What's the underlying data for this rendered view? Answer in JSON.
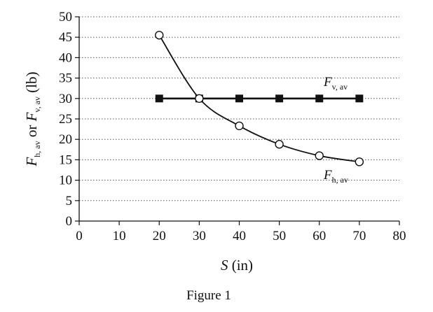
{
  "chart_data": {
    "type": "line",
    "xlabel": {
      "var": "S",
      "unit": " (in)"
    },
    "ylabel": {
      "var1": "F",
      "sub1": "h, av",
      "or": " or ",
      "var2": "F",
      "sub2": "v, av",
      "unit": " (lb)"
    },
    "xlim": [
      0,
      80
    ],
    "ylim": [
      0,
      50
    ],
    "x_ticks": [
      0,
      10,
      20,
      30,
      40,
      50,
      60,
      70,
      80
    ],
    "y_ticks": [
      0,
      5,
      10,
      15,
      20,
      25,
      30,
      35,
      40,
      45,
      50
    ],
    "grid": "horizontal dotted",
    "series": [
      {
        "name": "Fv, av",
        "label_var": "F",
        "label_sub": "v, av",
        "marker": "filled-square",
        "curve": "straight",
        "x": [
          20,
          30,
          40,
          50,
          60,
          70
        ],
        "y": [
          30,
          30,
          30,
          30,
          30,
          30
        ]
      },
      {
        "name": "Fh, av",
        "label_var": "F",
        "label_sub": "h, av",
        "marker": "open-circle",
        "curve": "smooth",
        "x": [
          20,
          30,
          40,
          50,
          60,
          70
        ],
        "y": [
          45.5,
          30,
          23.3,
          18.8,
          16,
          14.5
        ]
      }
    ]
  },
  "caption": "Figure 1",
  "colors": {
    "line": "#111111",
    "grid": "#555555",
    "background": "#ffffff"
  }
}
